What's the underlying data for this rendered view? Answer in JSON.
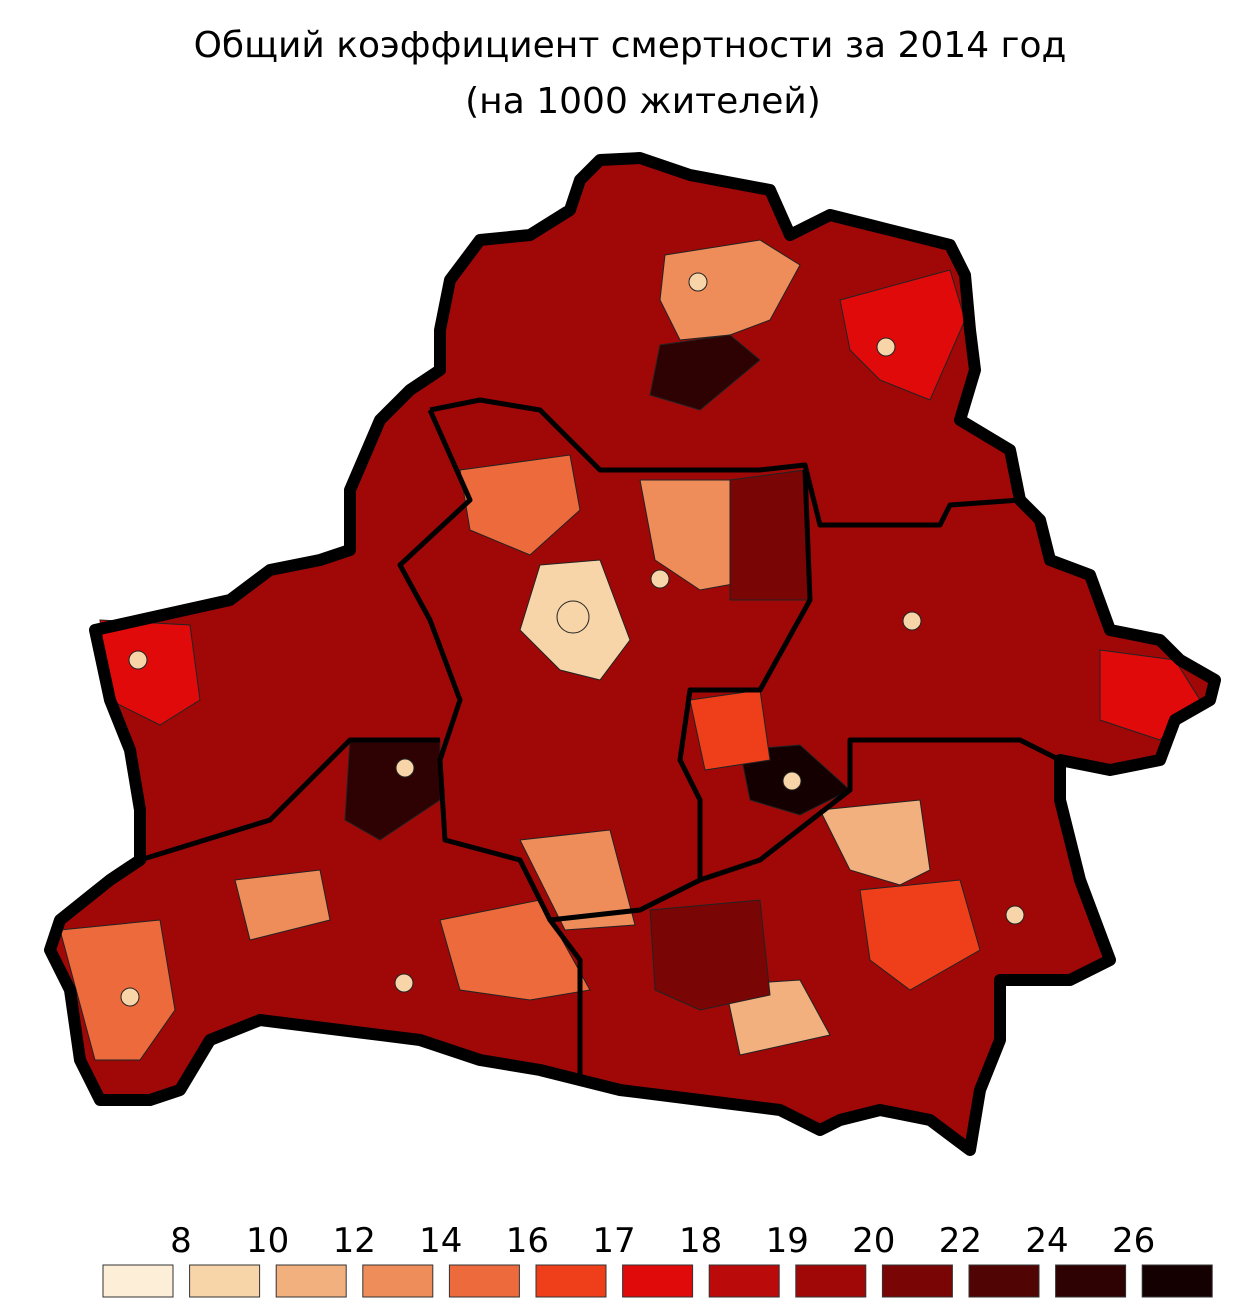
{
  "title": "Общий коэффициент смертности за 2014 год",
  "subtitle": "(на 1000 жителей)",
  "legend": {
    "breaks": [
      8,
      10,
      12,
      14,
      16,
      17,
      18,
      19,
      20,
      22,
      24,
      26
    ],
    "colors": [
      "#fdeed8",
      "#f8d5a9",
      "#f2b07f",
      "#ee8c5a",
      "#ec6a3c",
      "#ef3f1a",
      "#e10a0a",
      "#bb0a0a",
      "#a00808",
      "#7a0505",
      "#500404",
      "#2e0202",
      "#140000"
    ]
  }
}
